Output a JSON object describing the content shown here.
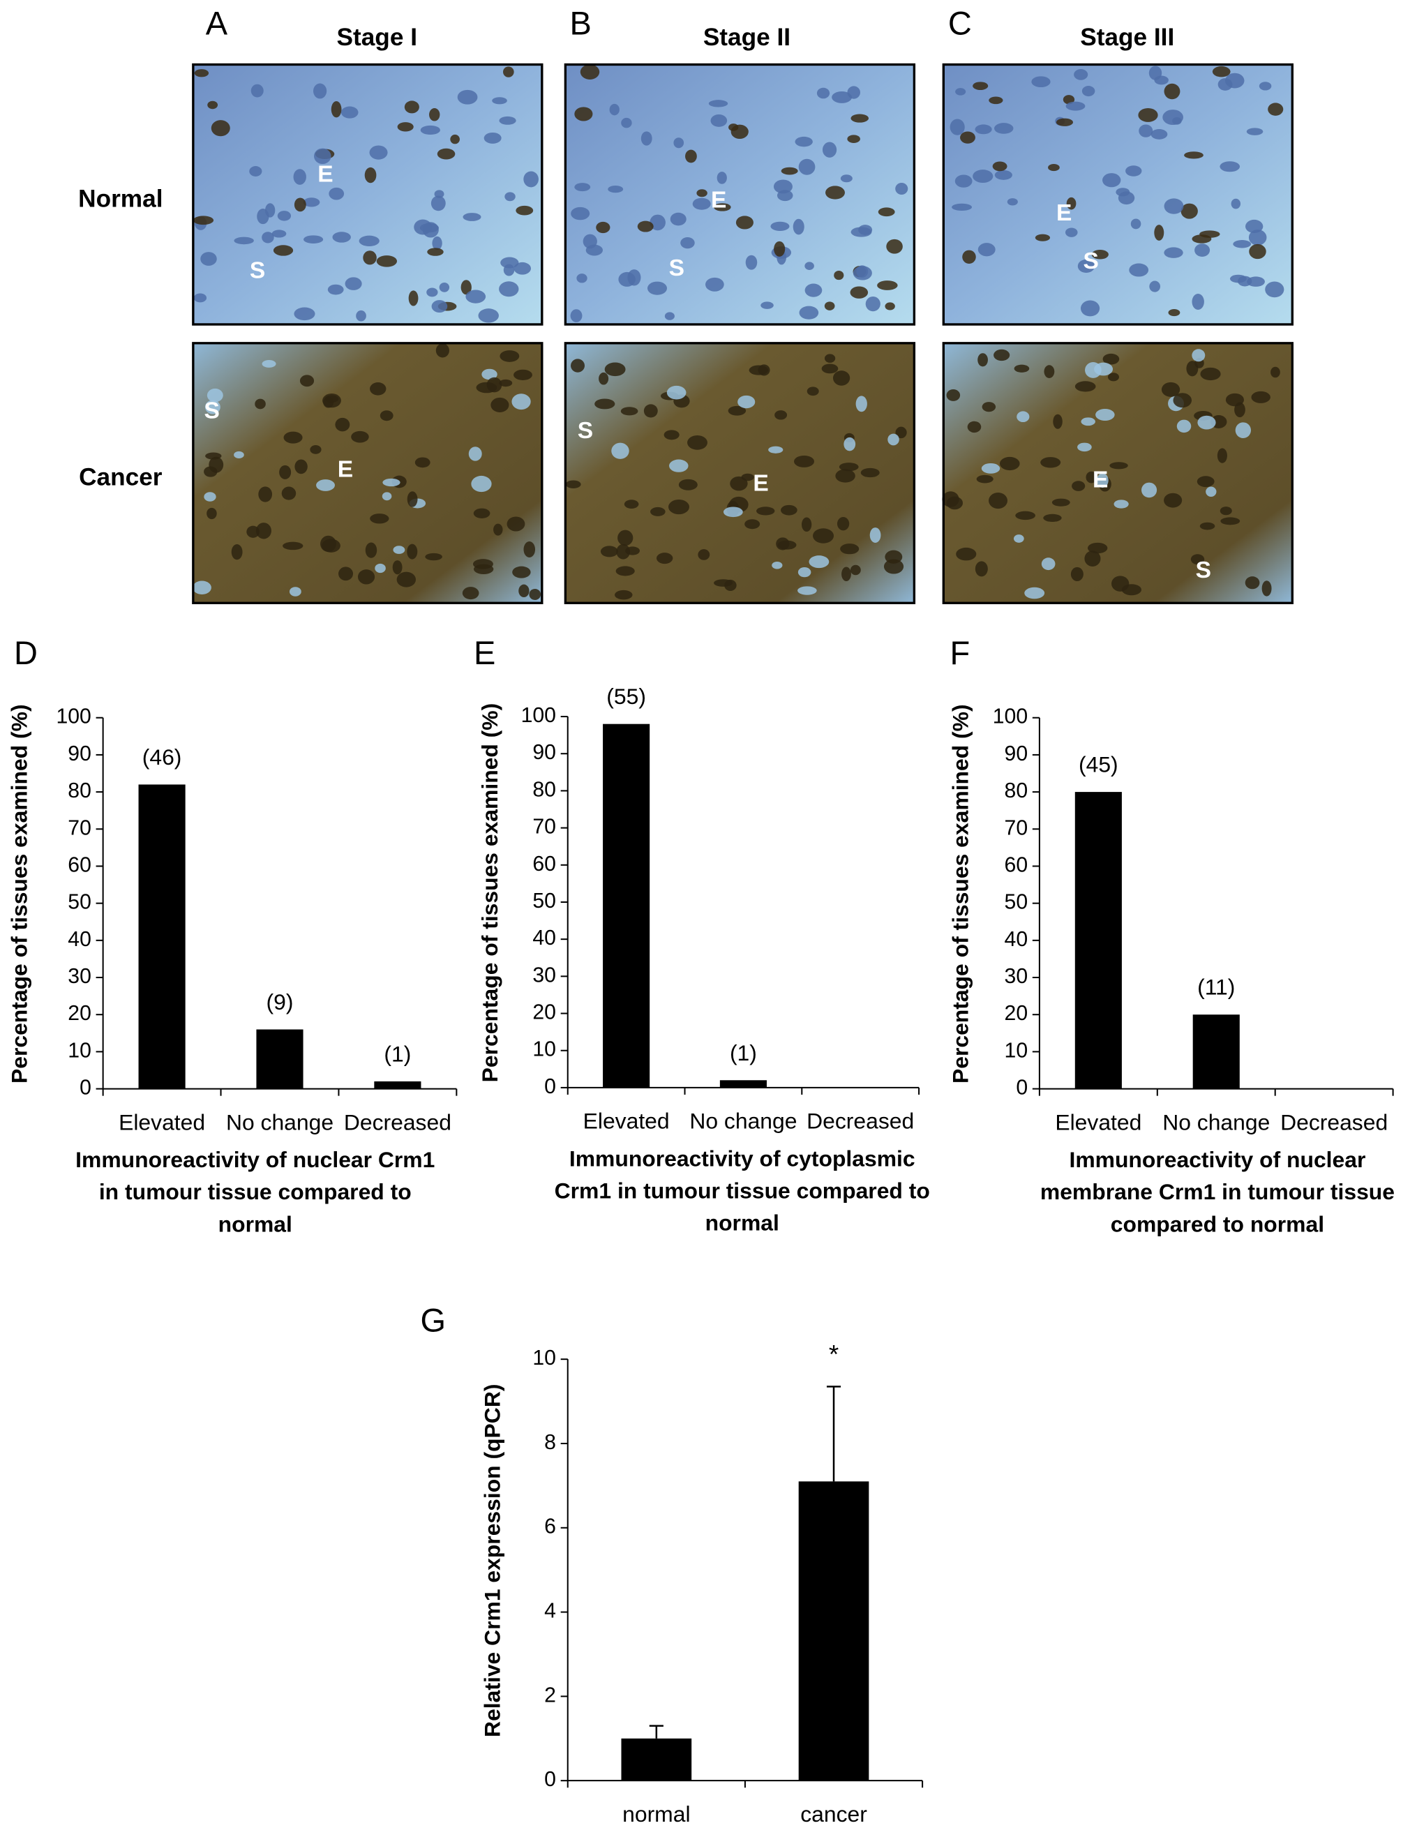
{
  "panels": {
    "letters": [
      "A",
      "B",
      "C"
    ],
    "stages": [
      "Stage I",
      "Stage II",
      "Stage III"
    ],
    "rows": [
      "Normal",
      "Cancer"
    ],
    "images": [
      [
        "E",
        "S"
      ],
      [
        "E",
        "S"
      ],
      [
        "E",
        "S"
      ],
      [
        "S",
        "E"
      ],
      [
        "S",
        "E"
      ],
      [
        "E",
        "S"
      ]
    ]
  },
  "chart_data": [
    {
      "type": "bar",
      "panel": "D",
      "ylabel": "Percentage of tissues examined (%)",
      "xlabel": [
        "Immunoreactivity of nuclear Crm1",
        "in tumour tissue compared to",
        "normal"
      ],
      "categories": [
        "Elevated",
        "No change",
        "Decreased"
      ],
      "values": [
        82,
        16,
        2
      ],
      "count_labels": [
        "(46)",
        "(9)",
        "(1)"
      ],
      "color": "#000000",
      "ylim": [
        0,
        100
      ],
      "yticks": [
        0,
        10,
        20,
        30,
        40,
        50,
        60,
        70,
        80,
        90,
        100
      ]
    },
    {
      "type": "bar",
      "panel": "E",
      "ylabel": "Percentage of tissues examined (%)",
      "xlabel": [
        "Immunoreactivity of cytoplasmic",
        "Crm1 in tumour tissue compared to",
        "normal"
      ],
      "categories": [
        "Elevated",
        "No change",
        "Decreased"
      ],
      "values": [
        98,
        2,
        0
      ],
      "count_labels": [
        "(55)",
        "(1)",
        null
      ],
      "color": "#000000",
      "ylim": [
        0,
        100
      ],
      "yticks": [
        0,
        10,
        20,
        30,
        40,
        50,
        60,
        70,
        80,
        90,
        100
      ]
    },
    {
      "type": "bar",
      "panel": "F",
      "ylabel": "Percentage of tissues examined (%)",
      "xlabel": [
        "Immunoreactivity of nuclear",
        "membrane Crm1 in tumour tissue",
        "compared to normal"
      ],
      "categories": [
        "Elevated",
        "No change",
        "Decreased"
      ],
      "values": [
        80,
        20,
        0
      ],
      "count_labels": [
        "(45)",
        "(11)",
        null
      ],
      "color": "#000000",
      "ylim": [
        0,
        100
      ],
      "yticks": [
        0,
        10,
        20,
        30,
        40,
        50,
        60,
        70,
        80,
        90,
        100
      ]
    },
    {
      "type": "bar",
      "panel": "G",
      "ylabel": "Relative Crm1 expression (qPCR)",
      "categories": [
        "normal",
        "cancer"
      ],
      "values": [
        1.0,
        7.1
      ],
      "errors": [
        0.3,
        2.25
      ],
      "annotation": "*",
      "color": "#000000",
      "ylim": [
        0,
        10
      ],
      "yticks": [
        0,
        2,
        4,
        6,
        8,
        10
      ]
    }
  ]
}
